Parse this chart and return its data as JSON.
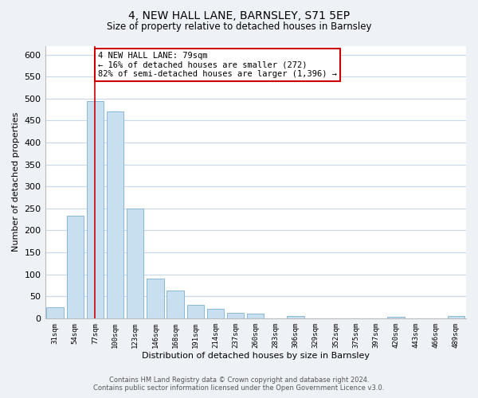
{
  "title": "4, NEW HALL LANE, BARNSLEY, S71 5EP",
  "subtitle": "Size of property relative to detached houses in Barnsley",
  "xlabel": "Distribution of detached houses by size in Barnsley",
  "ylabel": "Number of detached properties",
  "bar_labels": [
    "31sqm",
    "54sqm",
    "77sqm",
    "100sqm",
    "123sqm",
    "146sqm",
    "168sqm",
    "191sqm",
    "214sqm",
    "237sqm",
    "260sqm",
    "283sqm",
    "306sqm",
    "329sqm",
    "352sqm",
    "375sqm",
    "397sqm",
    "420sqm",
    "443sqm",
    "466sqm",
    "489sqm"
  ],
  "bar_values": [
    25,
    233,
    495,
    470,
    250,
    90,
    63,
    31,
    22,
    12,
    10,
    0,
    5,
    0,
    0,
    0,
    0,
    3,
    0,
    0,
    5
  ],
  "bar_color": "#c8dff0",
  "bar_edge_color": "#8ab8d8",
  "property_bin_index": 2,
  "marker_line_color": "#cc0000",
  "annotation_text_line1": "4 NEW HALL LANE: 79sqm",
  "annotation_text_line2": "← 16% of detached houses are smaller (272)",
  "annotation_text_line3": "82% of semi-detached houses are larger (1,396) →",
  "annotation_box_facecolor": "#ffffff",
  "annotation_box_edgecolor": "#cc0000",
  "ylim": [
    0,
    620
  ],
  "yticks": [
    0,
    50,
    100,
    150,
    200,
    250,
    300,
    350,
    400,
    450,
    500,
    550,
    600
  ],
  "footer_line1": "Contains HM Land Registry data © Crown copyright and database right 2024.",
  "footer_line2": "Contains public sector information licensed under the Open Government Licence v3.0.",
  "bg_color": "#eef2f7",
  "plot_bg_color": "#ffffff",
  "grid_color": "#c8d8e8"
}
